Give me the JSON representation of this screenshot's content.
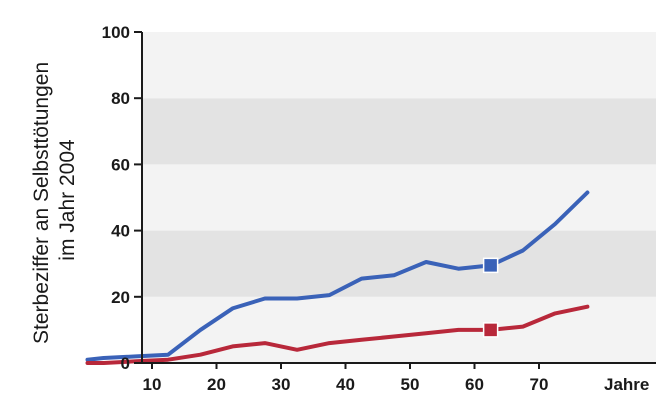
{
  "chart_data": {
    "type": "line",
    "title": "",
    "ylabel_lines": [
      "Sterbeziffer an Selbsttötungen",
      "im Jahr 2004"
    ],
    "xlabel": "",
    "x_unit": "Jahre",
    "xlim": [
      0,
      80
    ],
    "ylim": [
      0,
      100
    ],
    "x_ticks": [
      10,
      20,
      30,
      40,
      50,
      60,
      70
    ],
    "x_tick_labels": [
      "10",
      "20",
      "30",
      "40",
      "50",
      "60",
      "70"
    ],
    "y_ticks": [
      0,
      20,
      40,
      60,
      80,
      100
    ],
    "y_tick_labels": [
      "0",
      "20",
      "40",
      "60",
      "80",
      "100"
    ],
    "grid": "alternating horizontal bands",
    "legend": "none",
    "series": [
      {
        "color": "#3A62B8",
        "marker": "square at x=62.5",
        "x": [
          0,
          2.5,
          7.5,
          12.5,
          17.5,
          22.5,
          27.5,
          32.5,
          37.5,
          42.5,
          47.5,
          52.5,
          57.5,
          62.5,
          67.5,
          72.5,
          77.5
        ],
        "y": [
          1,
          1.5,
          2,
          2.5,
          10,
          16.5,
          19.5,
          19.5,
          20.5,
          25.5,
          26.5,
          30.5,
          28.5,
          29.5,
          34,
          42,
          51.5
        ]
      },
      {
        "color": "#B8283A",
        "marker": "square at x=62.5",
        "x": [
          0,
          2.5,
          7.5,
          12.5,
          17.5,
          22.5,
          27.5,
          32.5,
          37.5,
          42.5,
          47.5,
          52.5,
          57.5,
          62.5,
          67.5,
          72.5,
          77.5
        ],
        "y": [
          0,
          0,
          0.5,
          1,
          2.5,
          5,
          6,
          4,
          6,
          7,
          8,
          9,
          10,
          10,
          11,
          15,
          17
        ]
      }
    ]
  },
  "colors": {
    "band_light": "#F3F3F3",
    "band_dark": "#E3E3E3",
    "axis": "#1a1a1a"
  }
}
